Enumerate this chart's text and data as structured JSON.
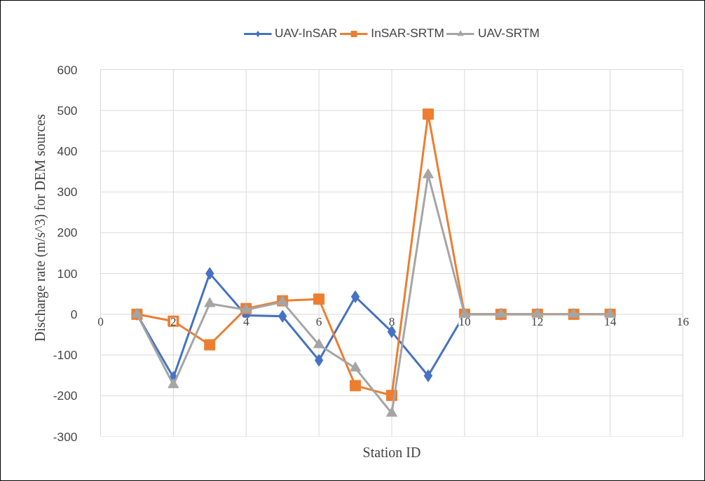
{
  "chart_data": {
    "type": "line",
    "xlabel": "Station ID",
    "ylabel": "Discharge rate (m/s^3) for DEM sources",
    "x": [
      1,
      2,
      3,
      4,
      5,
      6,
      7,
      8,
      9,
      10,
      11,
      12,
      13,
      14
    ],
    "series": [
      {
        "name": "UAV-InSAR",
        "color": "#4472c4",
        "marker": "diamond",
        "values": [
          0,
          -155,
          100,
          -3,
          -5,
          -113,
          43,
          -43,
          -151,
          0,
          0,
          0,
          null,
          null
        ]
      },
      {
        "name": "InSAR-SRTM",
        "color": "#ed7d31",
        "marker": "square",
        "values": [
          0,
          -17,
          -75,
          14,
          33,
          37,
          -175,
          -199,
          491,
          0,
          0,
          0,
          0,
          0
        ]
      },
      {
        "name": "UAV-SRTM",
        "color": "#a5a5a5",
        "marker": "triangle",
        "values": [
          0,
          -173,
          26,
          11,
          30,
          -75,
          -132,
          -243,
          342,
          0,
          0,
          0,
          0,
          0
        ]
      }
    ],
    "xlim": [
      0,
      16
    ],
    "xticks": [
      0,
      2,
      4,
      6,
      8,
      10,
      12,
      14,
      16
    ],
    "ylim": [
      -300,
      600
    ],
    "yticks": [
      -300,
      -200,
      -100,
      0,
      100,
      200,
      300,
      400,
      500,
      600
    ],
    "grid": true,
    "legend": "top",
    "line_style": "solid"
  }
}
